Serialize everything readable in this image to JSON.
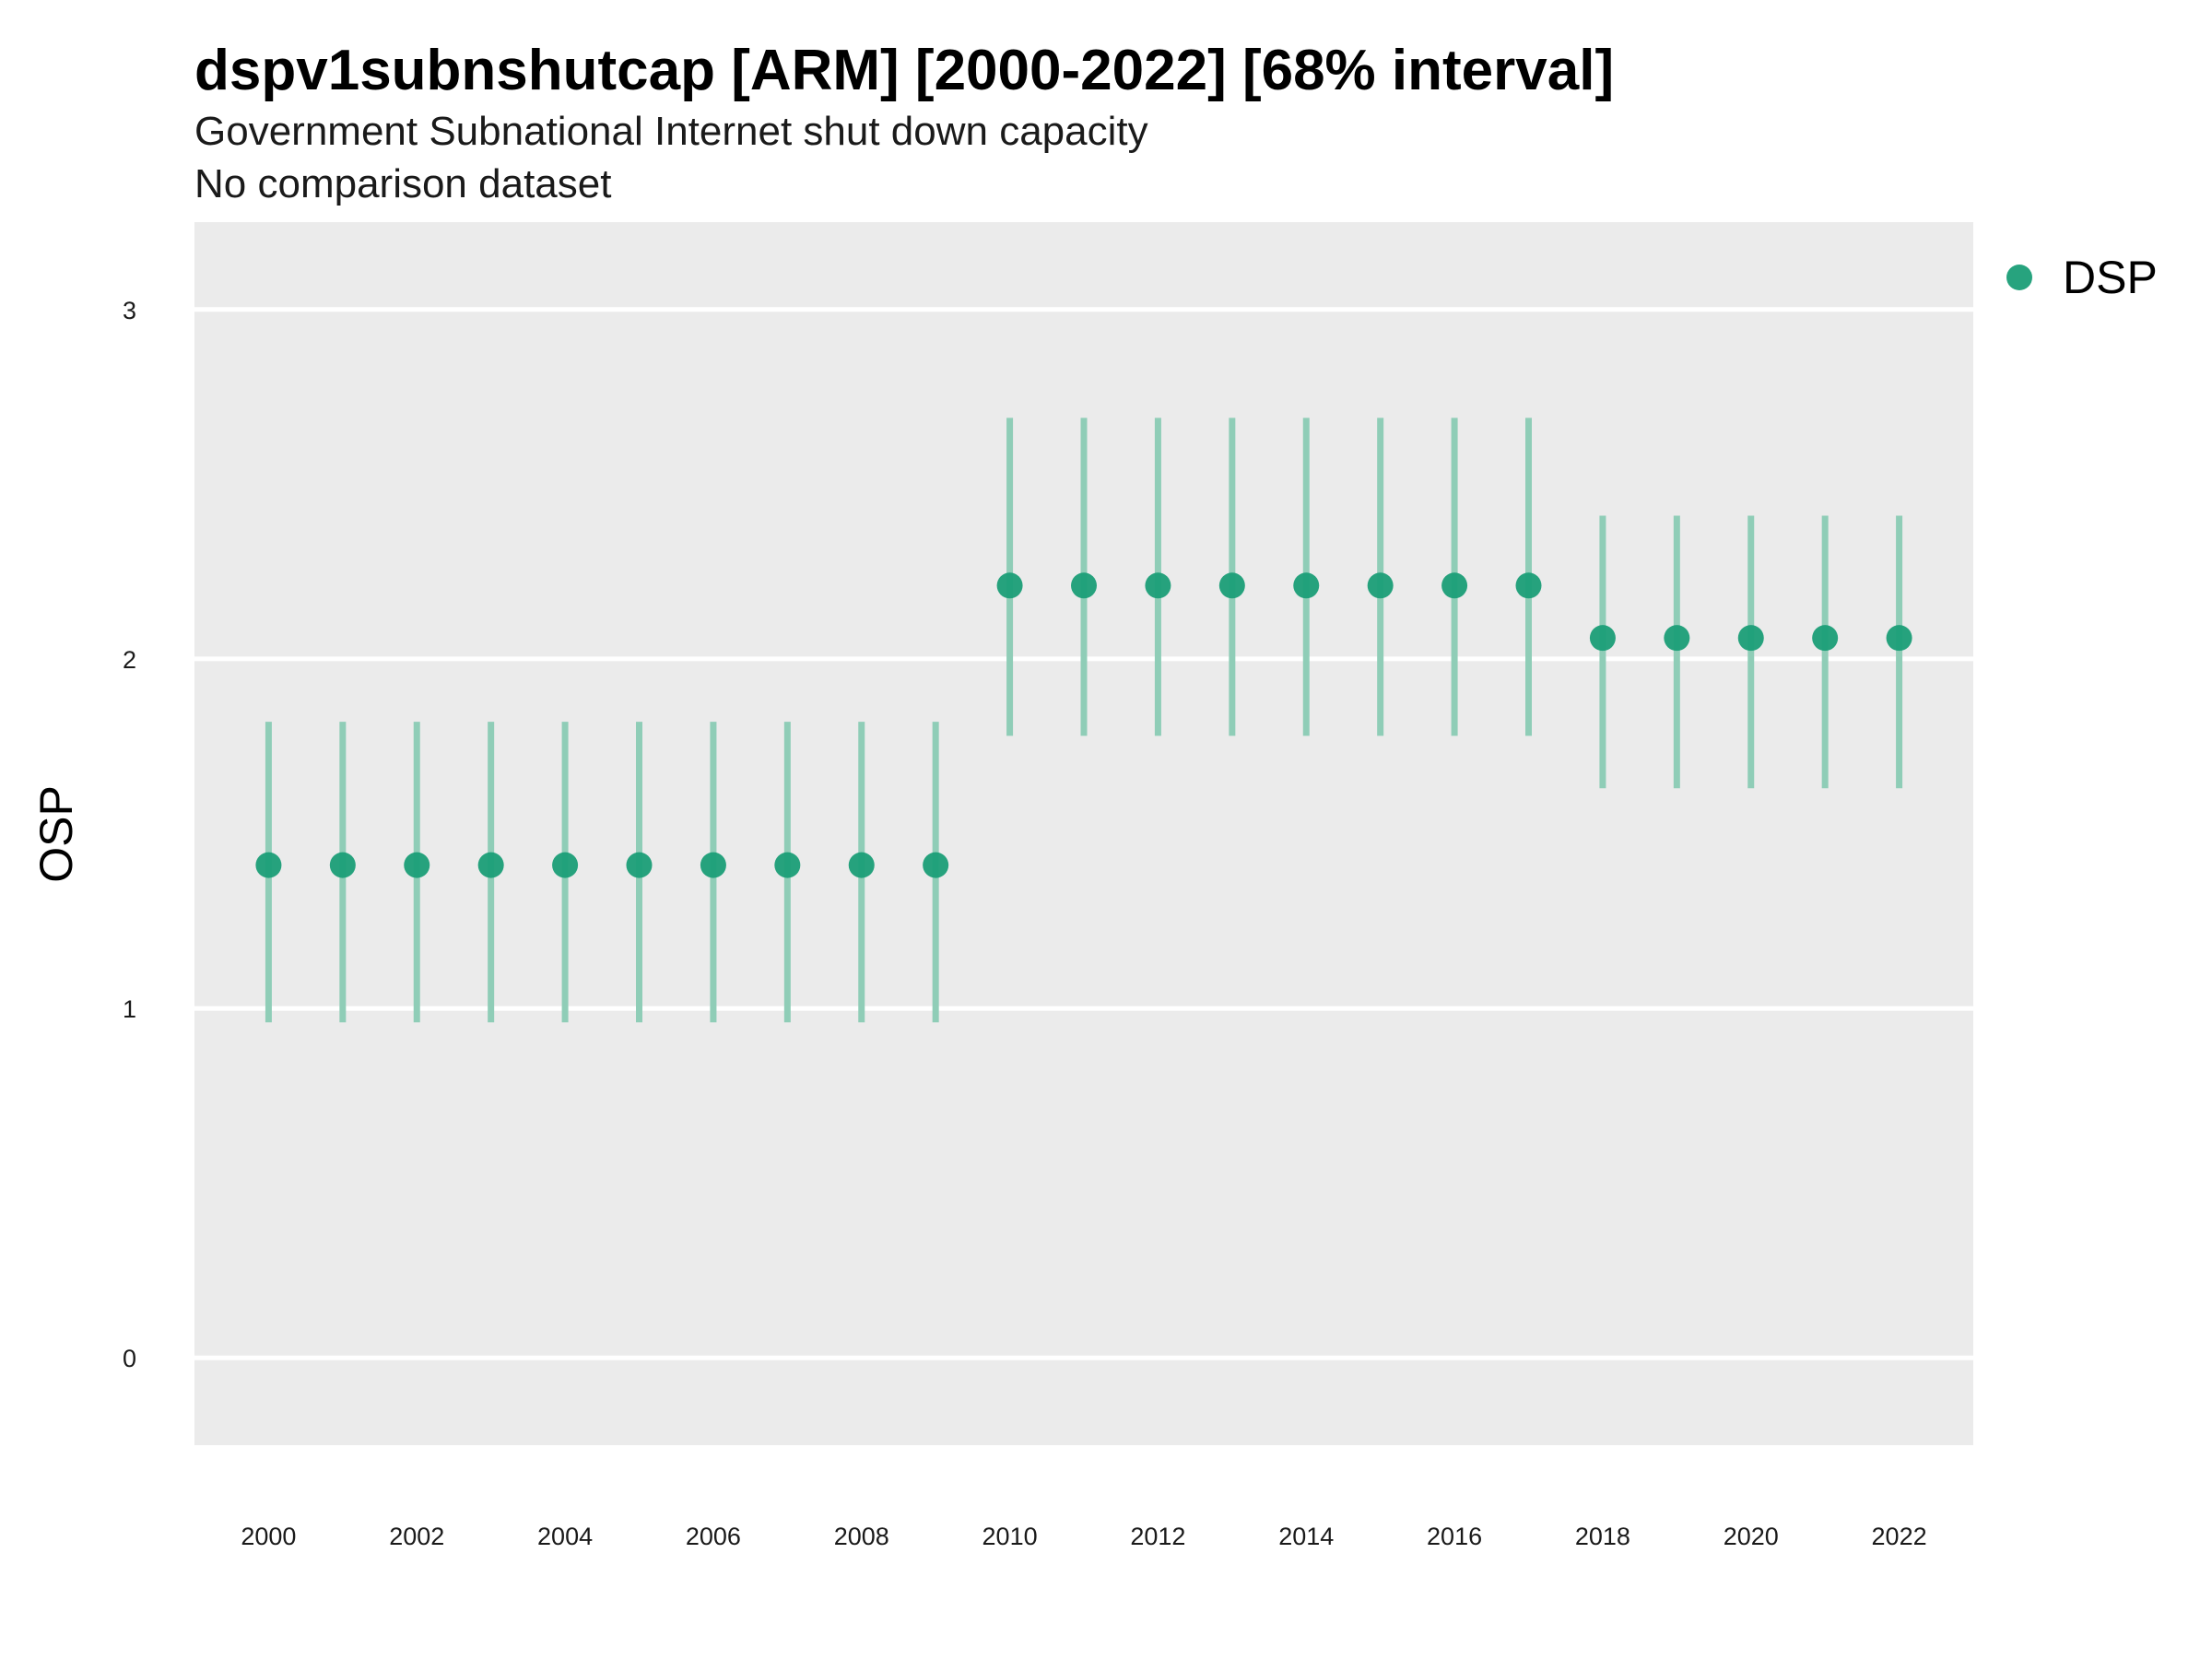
{
  "chart_data": {
    "type": "scatter",
    "title": "dspv1subnshutcap [ARM] [2000-2022] [68% interval]",
    "subtitle": "Government Subnational Internet shut down capacity",
    "subtitle2": "No comparison dataset",
    "xlabel": "",
    "ylabel": "OSP",
    "xlim": [
      1999,
      2023
    ],
    "ylim": [
      -0.25,
      3.25
    ],
    "x_ticks": [
      2000,
      2002,
      2004,
      2006,
      2008,
      2010,
      2012,
      2014,
      2016,
      2018,
      2020,
      2022
    ],
    "y_ticks": [
      0,
      1,
      2,
      3
    ],
    "grid": true,
    "legend": "right",
    "colors": {
      "point": "#1b9e77",
      "interval": "#8fcdb7",
      "panel": "#ebebeb",
      "grid": "#ffffff"
    },
    "series": [
      {
        "name": "DSP",
        "x": [
          2000,
          2001,
          2002,
          2003,
          2004,
          2005,
          2006,
          2007,
          2008,
          2009,
          2010,
          2011,
          2012,
          2013,
          2014,
          2015,
          2016,
          2017,
          2018,
          2019,
          2020,
          2021,
          2022
        ],
        "y": [
          1.41,
          1.41,
          1.41,
          1.41,
          1.41,
          1.41,
          1.41,
          1.41,
          1.41,
          1.41,
          2.21,
          2.21,
          2.21,
          2.21,
          2.21,
          2.21,
          2.21,
          2.21,
          2.06,
          2.06,
          2.06,
          2.06,
          2.06
        ],
        "lower": [
          0.96,
          0.96,
          0.96,
          0.96,
          0.96,
          0.96,
          0.96,
          0.96,
          0.96,
          0.96,
          1.78,
          1.78,
          1.78,
          1.78,
          1.78,
          1.78,
          1.78,
          1.78,
          1.63,
          1.63,
          1.63,
          1.63,
          1.63
        ],
        "upper": [
          1.82,
          1.82,
          1.82,
          1.82,
          1.82,
          1.82,
          1.82,
          1.82,
          1.82,
          1.82,
          2.69,
          2.69,
          2.69,
          2.69,
          2.69,
          2.69,
          2.69,
          2.69,
          2.41,
          2.41,
          2.41,
          2.41,
          2.41
        ]
      }
    ]
  }
}
